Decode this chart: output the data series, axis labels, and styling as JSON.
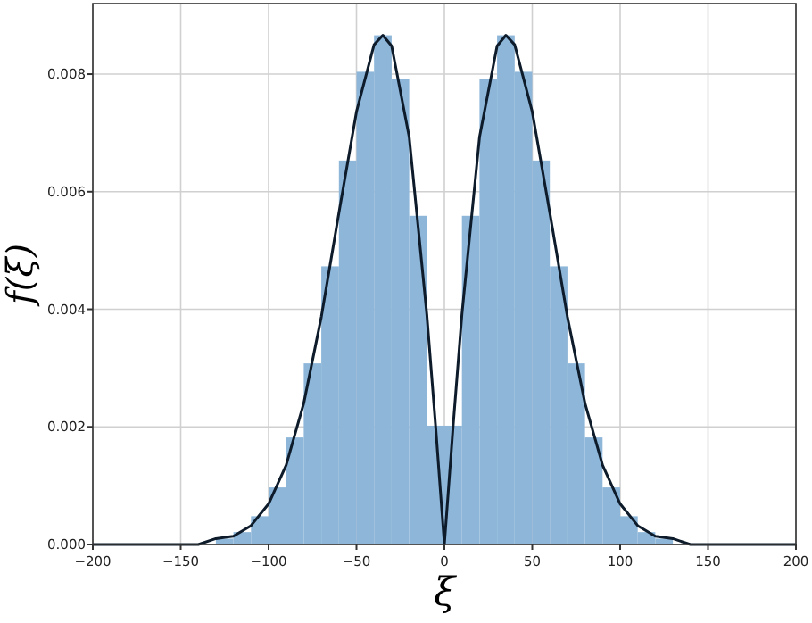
{
  "chart_data": {
    "type": "histogram",
    "xlabel": "ξ",
    "ylabel": "f(ξ)",
    "bins": [
      -130,
      -120,
      -110,
      -100,
      -90,
      -80,
      -70,
      -60,
      -50,
      -40,
      -30,
      -20,
      -10,
      0,
      10,
      20,
      30,
      40,
      50,
      60,
      70,
      80,
      90,
      100,
      110,
      120,
      130
    ],
    "values": [
      0.0001,
      0.00021,
      0.00048,
      0.00097,
      0.00182,
      0.00308,
      0.00473,
      0.00653,
      0.00804,
      0.00866,
      0.00791,
      0.00559,
      0.00202,
      0.00202,
      0.00559,
      0.00791,
      0.00866,
      0.00804,
      0.00653,
      0.00473,
      0.00308,
      0.00182,
      0.00097,
      0.00048,
      0.00021,
      0.0001
    ],
    "color": "#8db6d9",
    "series": [
      {
        "type": "line",
        "color": "#0d1b2a",
        "x": [
          -200,
          -150,
          -140,
          -130,
          -120,
          -110,
          -100,
          -90,
          -80,
          -70,
          -60,
          -50,
          -40,
          -35,
          -30,
          -20,
          -10,
          -5,
          0,
          5,
          10,
          20,
          30,
          35,
          40,
          50,
          60,
          70,
          80,
          90,
          100,
          110,
          120,
          130,
          140,
          150,
          200
        ],
        "values": [
          0,
          0,
          0,
          0.0001,
          0.00014,
          0.00032,
          0.00069,
          0.00135,
          0.0024,
          0.00387,
          0.00564,
          0.00736,
          0.0085,
          0.00866,
          0.00848,
          0.00693,
          0.00392,
          0.00202,
          0,
          0.00202,
          0.00392,
          0.00693,
          0.00848,
          0.00866,
          0.0085,
          0.00736,
          0.00564,
          0.00387,
          0.0024,
          0.00135,
          0.00069,
          0.00032,
          0.00014,
          0.0001,
          0,
          0,
          0
        ]
      }
    ],
    "xlim": [
      -200,
      200
    ],
    "ylim": [
      0,
      0.0092
    ],
    "xticks": [
      -200,
      -150,
      -100,
      -50,
      0,
      50,
      100,
      150,
      200
    ],
    "yticks": [
      {
        "value": 0,
        "label": "0.000"
      },
      {
        "value": 0.002,
        "label": "0.002"
      },
      {
        "value": 0.004,
        "label": "0.004"
      },
      {
        "value": 0.006,
        "label": "0.006"
      },
      {
        "value": 0.008,
        "label": "0.008"
      }
    ],
    "grid": true
  }
}
